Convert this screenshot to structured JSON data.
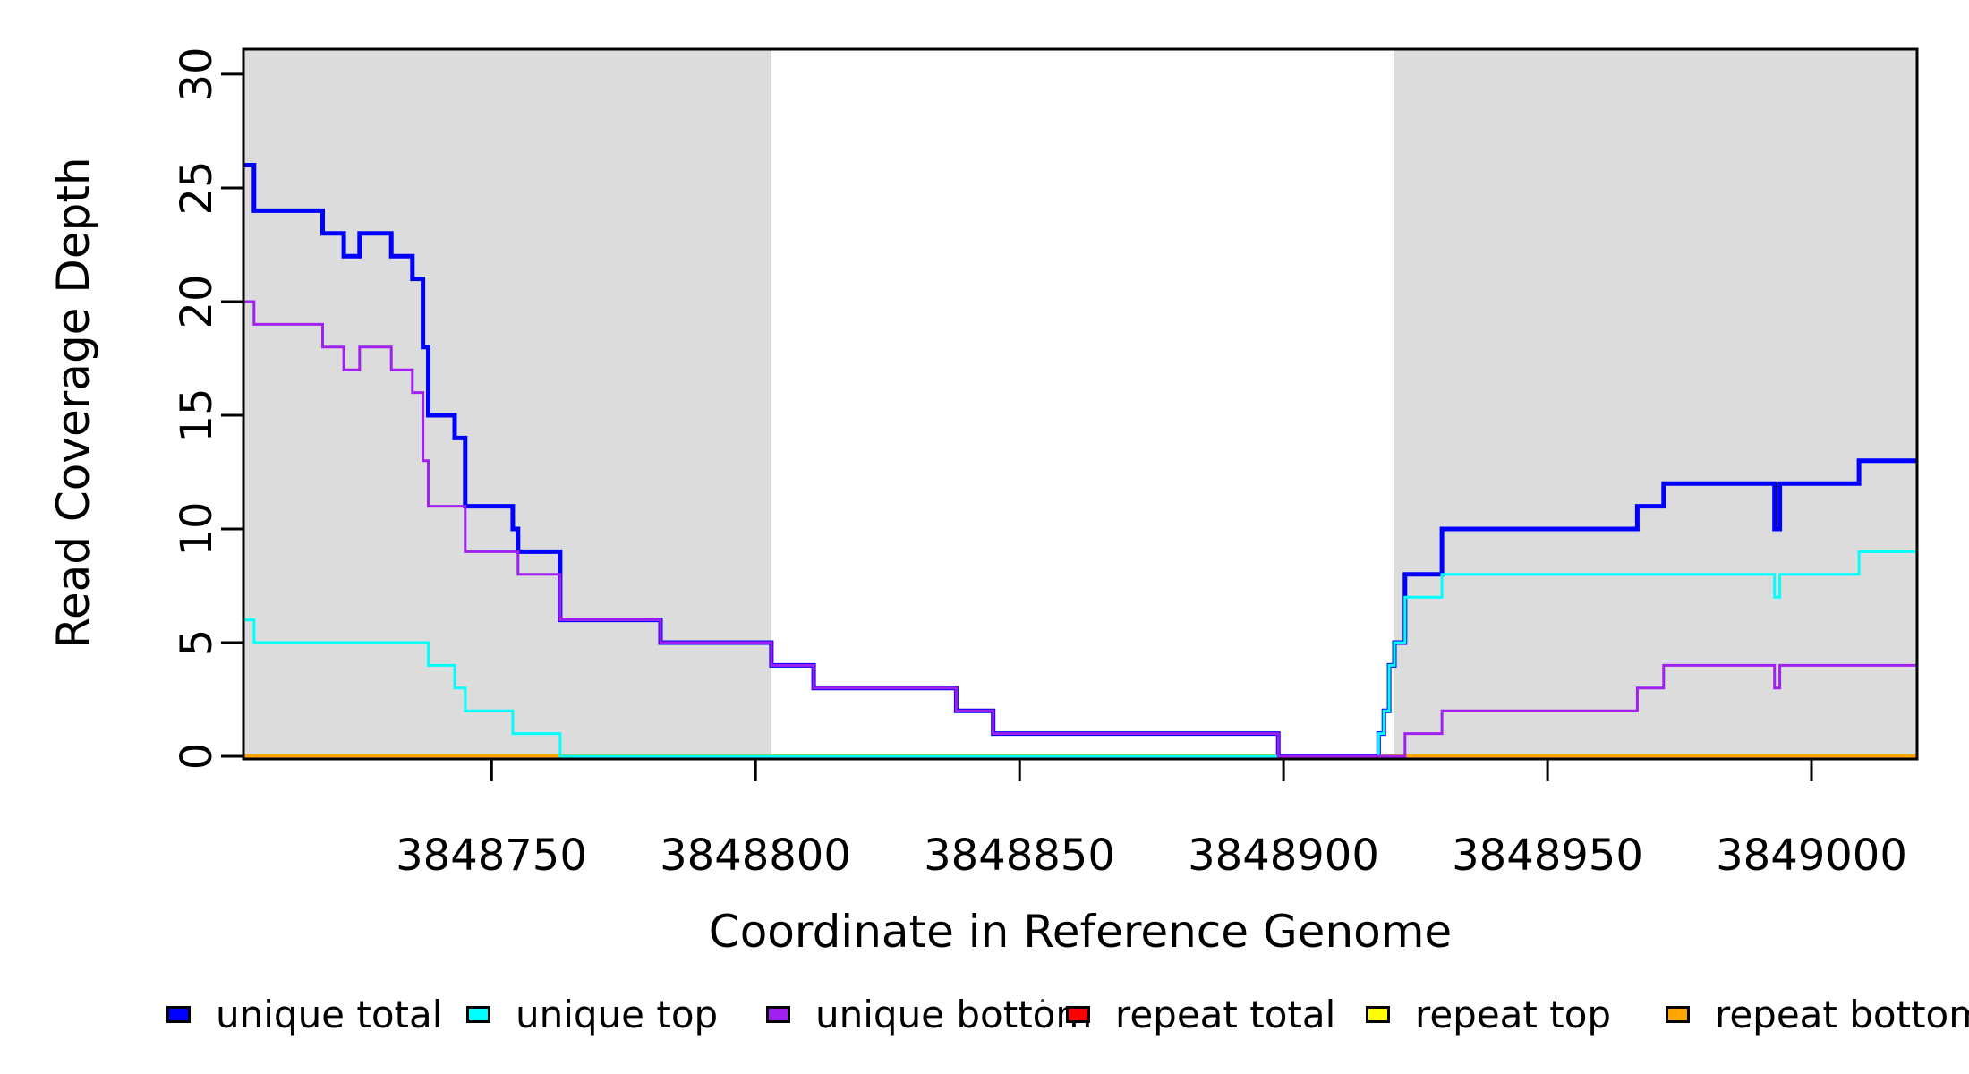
{
  "figure": {
    "background_color": "#FFFFFF",
    "shade_color": "#DCDCDC",
    "frame_color": "#000000",
    "text_color": "#000000"
  },
  "chart_data": {
    "type": "line",
    "subtype": "step-coverage-plot",
    "title": "",
    "xlabel": "Coordinate in Reference Genome",
    "ylabel": "Read Coverage Depth",
    "xlim": [
      3848703,
      3849020
    ],
    "ylim": [
      0,
      31.1
    ],
    "xticks": [
      3848750,
      3848800,
      3848850,
      3848900,
      3848950,
      3849000
    ],
    "yticks": [
      0,
      5,
      10,
      15,
      20,
      25,
      30
    ],
    "grid": false,
    "shaded_regions": [
      [
        3848703,
        3848803
      ],
      [
        3848921,
        3849020
      ]
    ],
    "draw_order": [
      3,
      4,
      5,
      0,
      1,
      2
    ],
    "series": [
      {
        "name": "unique total",
        "color": "#0000FF",
        "width": 5,
        "points": [
          [
            3848703,
            26
          ],
          [
            3848705,
            24
          ],
          [
            3848718,
            23
          ],
          [
            3848722,
            22
          ],
          [
            3848725,
            23
          ],
          [
            3848731,
            22
          ],
          [
            3848735,
            21
          ],
          [
            3848737,
            18
          ],
          [
            3848738,
            15
          ],
          [
            3848743,
            14
          ],
          [
            3848745,
            11
          ],
          [
            3848754,
            10
          ],
          [
            3848755,
            9
          ],
          [
            3848763,
            6
          ],
          [
            3848782,
            5
          ],
          [
            3848803,
            4
          ],
          [
            3848811,
            3
          ],
          [
            3848838,
            2
          ],
          [
            3848845,
            1
          ],
          [
            3848899,
            0
          ],
          [
            3848918,
            1
          ],
          [
            3848919,
            2
          ],
          [
            3848920,
            4
          ],
          [
            3848921,
            5
          ],
          [
            3848923,
            8
          ],
          [
            3848930,
            10
          ],
          [
            3848967,
            11
          ],
          [
            3848972,
            12
          ],
          [
            3848993,
            10
          ],
          [
            3848994,
            12
          ],
          [
            3849009,
            13
          ],
          [
            3849020,
            13
          ]
        ]
      },
      {
        "name": "unique top",
        "color": "#00FFFF",
        "width": 3,
        "points": [
          [
            3848703,
            6
          ],
          [
            3848705,
            5
          ],
          [
            3848738,
            4
          ],
          [
            3848743,
            3
          ],
          [
            3848745,
            2
          ],
          [
            3848754,
            1
          ],
          [
            3848763,
            0
          ],
          [
            3848918,
            1
          ],
          [
            3848919,
            2
          ],
          [
            3848920,
            4
          ],
          [
            3848921,
            5
          ],
          [
            3848923,
            7
          ],
          [
            3848930,
            8
          ],
          [
            3848993,
            7
          ],
          [
            3848994,
            8
          ],
          [
            3849009,
            9
          ],
          [
            3849020,
            9
          ]
        ]
      },
      {
        "name": "unique bottom",
        "color": "#A020F0",
        "width": 3,
        "points": [
          [
            3848703,
            20
          ],
          [
            3848705,
            19
          ],
          [
            3848718,
            18
          ],
          [
            3848722,
            17
          ],
          [
            3848725,
            18
          ],
          [
            3848731,
            17
          ],
          [
            3848735,
            16
          ],
          [
            3848737,
            13
          ],
          [
            3848738,
            11
          ],
          [
            3848745,
            9
          ],
          [
            3848755,
            8
          ],
          [
            3848763,
            6
          ],
          [
            3848782,
            5
          ],
          [
            3848803,
            4
          ],
          [
            3848811,
            3
          ],
          [
            3848838,
            2
          ],
          [
            3848845,
            1
          ],
          [
            3848899,
            0
          ],
          [
            3848923,
            1
          ],
          [
            3848930,
            2
          ],
          [
            3848967,
            3
          ],
          [
            3848972,
            4
          ],
          [
            3848993,
            3
          ],
          [
            3848994,
            4
          ],
          [
            3849020,
            4
          ]
        ]
      },
      {
        "name": "repeat total",
        "color": "#FF0000",
        "width": 3,
        "points": [
          [
            3848703,
            0
          ],
          [
            3849020,
            0
          ]
        ]
      },
      {
        "name": "repeat top",
        "color": "#FFFF00",
        "width": 3,
        "points": [
          [
            3848703,
            0
          ],
          [
            3849020,
            0
          ]
        ]
      },
      {
        "name": "repeat bottom",
        "color": "#FFA500",
        "width": 4,
        "points": [
          [
            3848703,
            0
          ],
          [
            3849020,
            0
          ]
        ]
      }
    ],
    "legend": {
      "position": "bottom",
      "items": [
        {
          "label": "unique total",
          "color": "#0000FF"
        },
        {
          "label": "unique top",
          "color": "#00FFFF"
        },
        {
          "label": "unique bottom",
          "color": "#A020F0"
        },
        {
          "label": "repeat total",
          "color": "#FF0000"
        },
        {
          "label": "repeat top",
          "color": "#FFFF00"
        },
        {
          "label": "repeat bottom",
          "color": "#FFA500"
        }
      ]
    }
  }
}
